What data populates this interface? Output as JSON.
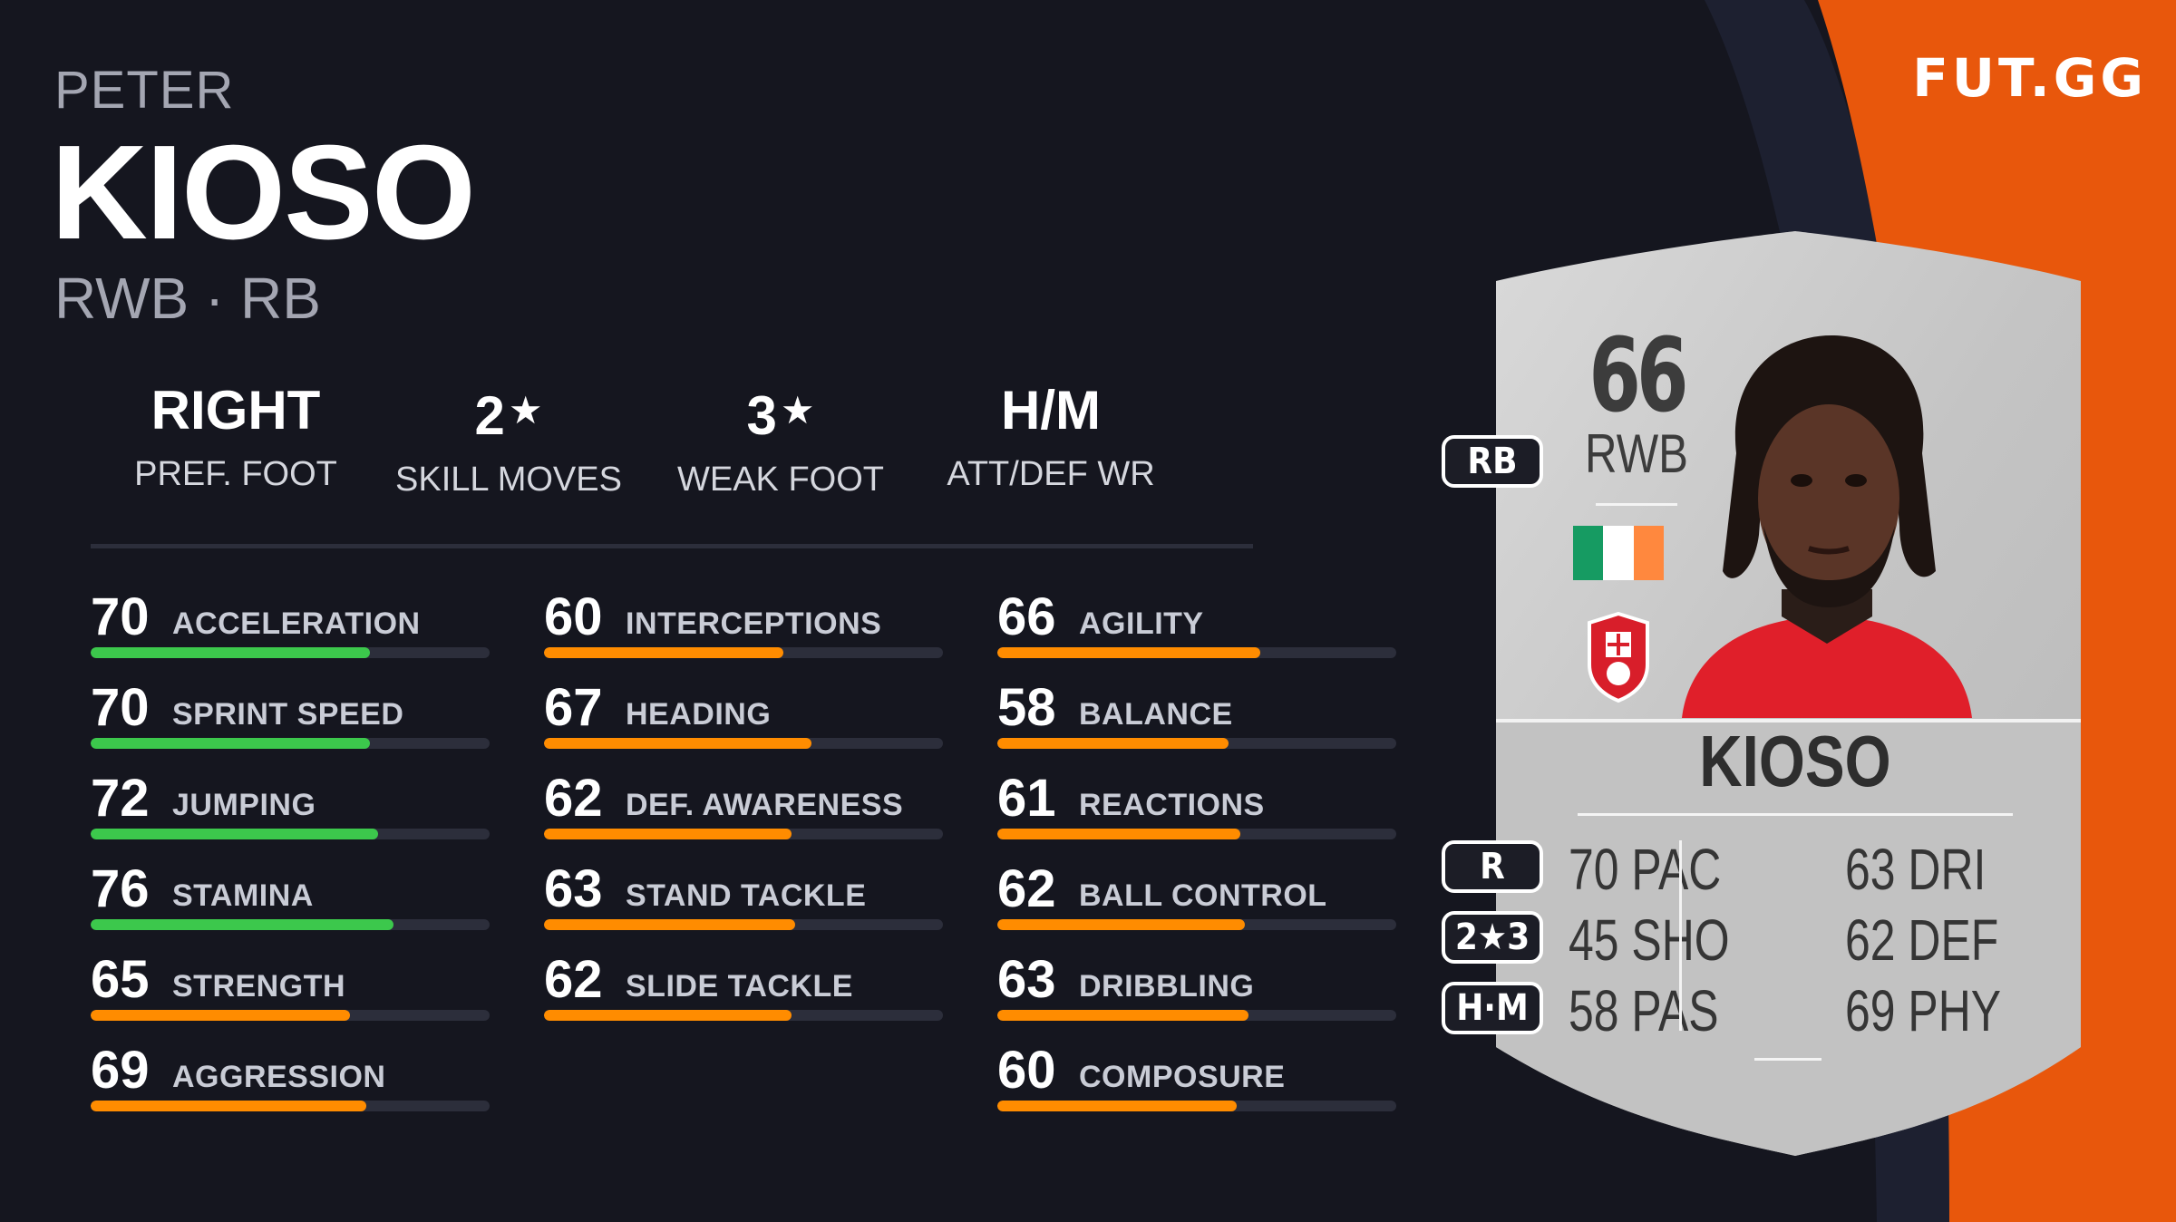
{
  "brand": "FUT.GG",
  "player": {
    "first_name": "PETER",
    "last_name": "KIOSO",
    "positions": "RWB · RB"
  },
  "info": [
    {
      "value": "RIGHT",
      "star": "",
      "label": "PREF. FOOT"
    },
    {
      "value": "2",
      "star": "★",
      "label": "SKILL MOVES"
    },
    {
      "value": "3",
      "star": "★",
      "label": "WEAK FOOT"
    },
    {
      "value": "H/M",
      "star": "",
      "label": "ATT/DEF WR"
    }
  ],
  "colors": {
    "background": "#15161f",
    "accent_orange": "#e8570c",
    "bar_green": "#3cc84c",
    "bar_orange": "#ff8c00",
    "bar_track": "#2c2e3b"
  },
  "stats_columns": [
    [
      {
        "value": 70,
        "name": "ACCELERATION",
        "color": "green"
      },
      {
        "value": 70,
        "name": "SPRINT SPEED",
        "color": "green"
      },
      {
        "value": 72,
        "name": "JUMPING",
        "color": "green"
      },
      {
        "value": 76,
        "name": "STAMINA",
        "color": "green"
      },
      {
        "value": 65,
        "name": "STRENGTH",
        "color": "orange"
      },
      {
        "value": 69,
        "name": "AGGRESSION",
        "color": "orange"
      }
    ],
    [
      {
        "value": 60,
        "name": "INTERCEPTIONS",
        "color": "orange"
      },
      {
        "value": 67,
        "name": "HEADING",
        "color": "orange"
      },
      {
        "value": 62,
        "name": "DEF. AWARENESS",
        "color": "orange"
      },
      {
        "value": 63,
        "name": "STAND TACKLE",
        "color": "orange"
      },
      {
        "value": 62,
        "name": "SLIDE TACKLE",
        "color": "orange"
      }
    ],
    [
      {
        "value": 66,
        "name": "AGILITY",
        "color": "orange"
      },
      {
        "value": 58,
        "name": "BALANCE",
        "color": "orange"
      },
      {
        "value": 61,
        "name": "REACTIONS",
        "color": "orange"
      },
      {
        "value": 62,
        "name": "BALL CONTROL",
        "color": "orange"
      },
      {
        "value": 63,
        "name": "DRIBBLING",
        "color": "orange"
      },
      {
        "value": 60,
        "name": "COMPOSURE",
        "color": "orange"
      }
    ]
  ],
  "card": {
    "rating": "66",
    "position": "RWB",
    "name": "KIOSO",
    "flag_colors": [
      "#169b62",
      "#ffffff",
      "#ff883e"
    ],
    "club_icon": "rotherham-badge-icon",
    "stats": [
      {
        "left": "70 PAC",
        "right": "63 DRI"
      },
      {
        "left": "45 SHO",
        "right": "62 DEF"
      },
      {
        "left": "58 PAS",
        "right": "69 PHY"
      }
    ],
    "pills": [
      {
        "text": "RB",
        "name": "alt-position-pill"
      },
      {
        "text": "R",
        "name": "foot-pill"
      },
      {
        "text": "2★3",
        "name": "skills-weakfoot-pill"
      },
      {
        "text": "H·M",
        "name": "work-rate-pill"
      }
    ]
  }
}
